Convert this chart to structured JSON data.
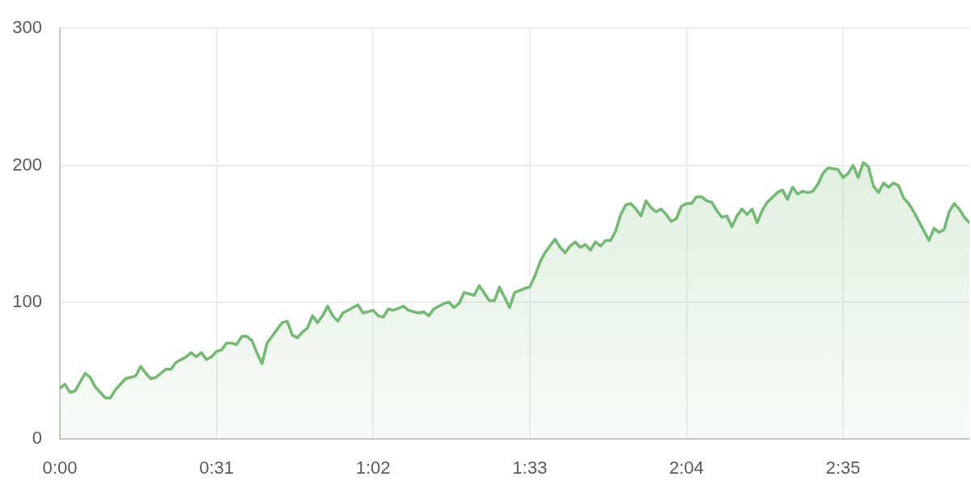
{
  "chart_data": {
    "type": "area",
    "color": "#72b972",
    "x": [
      0,
      1,
      2,
      3,
      5,
      6,
      7,
      8,
      9,
      10,
      11,
      12,
      13,
      15,
      16,
      17,
      18,
      19,
      20,
      21,
      22,
      23,
      25,
      26,
      27,
      28,
      29,
      30,
      31,
      32,
      33,
      34,
      35,
      36,
      37,
      38,
      39,
      40,
      41,
      42,
      44,
      45,
      46,
      47,
      48,
      49,
      50,
      51,
      52,
      53,
      54,
      55,
      56,
      58,
      59,
      60,
      62,
      63,
      64,
      65,
      66,
      68,
      69,
      71,
      72,
      73,
      74,
      76,
      77,
      78,
      79,
      80,
      82,
      83,
      85,
      86,
      87,
      89,
      90,
      92,
      93,
      94,
      95,
      96,
      98,
      99,
      100,
      101,
      102,
      103,
      104,
      105,
      106,
      107,
      108,
      109,
      110,
      111,
      112,
      113,
      114,
      115,
      116,
      117,
      118,
      119,
      120,
      121,
      122,
      123,
      124,
      125,
      126,
      127,
      128,
      129,
      130,
      131,
      132,
      133,
      134,
      135,
      136,
      137,
      138,
      139,
      140,
      142,
      143,
      144,
      145,
      146,
      147,
      148,
      149,
      150,
      151,
      152,
      154,
      155,
      156,
      157,
      158,
      159,
      160,
      161,
      162,
      163,
      164,
      165,
      166,
      167,
      168,
      169,
      170,
      171,
      172,
      173,
      174,
      175,
      176,
      177,
      178,
      179,
      180
    ],
    "values": [
      37,
      40,
      34,
      35,
      48,
      45,
      38,
      34,
      30,
      30,
      36,
      40,
      44,
      46,
      53,
      48,
      44,
      45,
      48,
      51,
      51,
      56,
      60,
      63,
      60,
      63,
      58,
      60,
      64,
      65,
      70,
      70,
      69,
      75,
      75,
      72,
      63,
      55,
      70,
      75,
      85,
      86,
      76,
      74,
      78,
      81,
      90,
      85,
      90,
      97,
      90,
      86,
      92,
      96,
      98,
      92,
      94,
      90,
      89,
      95,
      94,
      97,
      94,
      92,
      93,
      90,
      95,
      99,
      100,
      96,
      99,
      107,
      105,
      112,
      101,
      101,
      111,
      96,
      107,
      110,
      111,
      119,
      129,
      136,
      146,
      140,
      136,
      141,
      144,
      140,
      142,
      138,
      144,
      141,
      145,
      145,
      152,
      164,
      171,
      172,
      168,
      163,
      174,
      169,
      166,
      168,
      164,
      159,
      161,
      170,
      172,
      172,
      177,
      177,
      174,
      173,
      167,
      162,
      163,
      155,
      163,
      168,
      164,
      168,
      158,
      167,
      173,
      180,
      182,
      175,
      184,
      179,
      181,
      180,
      181,
      186,
      194,
      198,
      197,
      191,
      194,
      200,
      191,
      202,
      199,
      185,
      180,
      187,
      184,
      187,
      185,
      176,
      172,
      166,
      159,
      152,
      145,
      154,
      151,
      153,
      166,
      172,
      168,
      162,
      158
    ],
    "xlim": [
      0,
      180
    ],
    "xticks": [
      {
        "value": 0,
        "label": "0:00"
      },
      {
        "value": 31,
        "label": "0:31"
      },
      {
        "value": 62,
        "label": "1:02"
      },
      {
        "value": 93,
        "label": "1:33"
      },
      {
        "value": 124,
        "label": "2:04"
      },
      {
        "value": 155,
        "label": "2:35"
      }
    ],
    "ylim": [
      0,
      300
    ],
    "yticks": [
      0,
      100,
      200,
      300
    ],
    "grid": true
  }
}
